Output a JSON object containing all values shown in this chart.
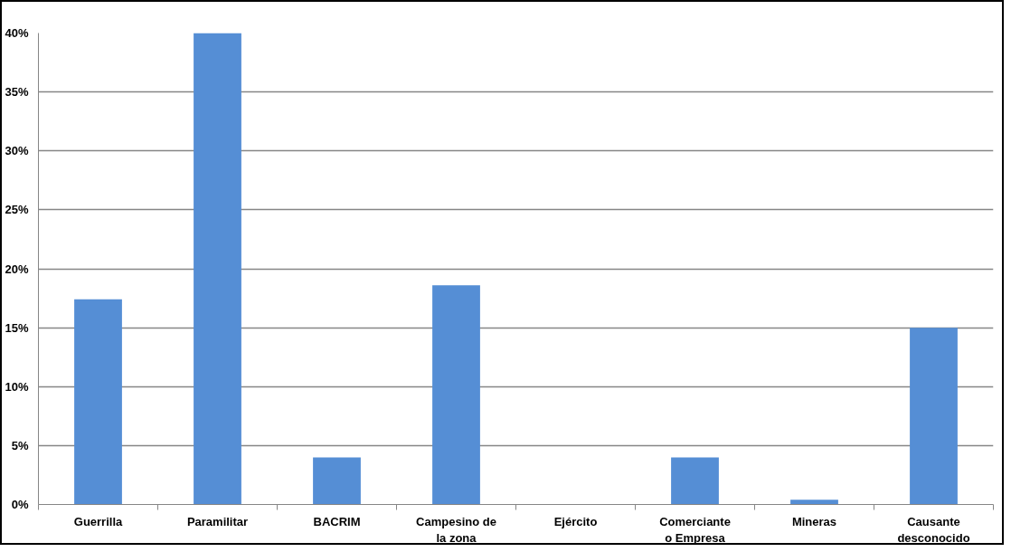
{
  "chart_data": {
    "type": "bar",
    "categories": [
      "Guerrilla",
      "Paramilitar",
      "BACRIM",
      "Campesino de la zona",
      "Ejército",
      "Comerciante o Empresa",
      "Mineras",
      "Causante desconocido"
    ],
    "values": [
      17.4,
      40,
      4.0,
      18.6,
      0,
      4.0,
      0.4,
      15
    ],
    "color": "#558ed5",
    "ylim": [
      0,
      40
    ],
    "yticks": [
      {
        "value": 0,
        "label": "0%"
      },
      {
        "value": 5,
        "label": "5%"
      },
      {
        "value": 10,
        "label": "10%"
      },
      {
        "value": 15,
        "label": "15%"
      },
      {
        "value": 20,
        "label": "20%"
      },
      {
        "value": 25,
        "label": "25%"
      },
      {
        "value": 30,
        "label": "30%"
      },
      {
        "value": 35,
        "label": "35%"
      },
      {
        "value": 40,
        "label": "40%"
      }
    ],
    "grid": "y"
  }
}
